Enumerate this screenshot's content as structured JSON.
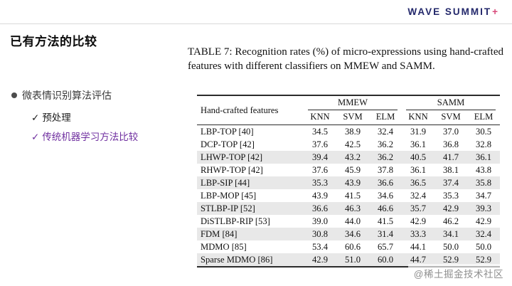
{
  "logo": {
    "brand": "WAVE SUMMIT",
    "plus": "+"
  },
  "header": {
    "title": "已有方法的比较"
  },
  "bullets": {
    "main": "微表情识别算法评估",
    "sub": [
      {
        "check": "✓",
        "label": "预处理"
      },
      {
        "check": "✓",
        "label": "传统机器学习方法比较"
      }
    ]
  },
  "table": {
    "caption": "TABLE 7: Recognition rates (%) of micro-expressions using hand-crafted features with different classifiers on MMEW and SAMM.",
    "feature_header": "Hand-crafted features",
    "groups": [
      "MMEW",
      "SAMM"
    ],
    "classifiers": [
      "KNN",
      "SVM",
      "ELM",
      "KNN",
      "SVM",
      "ELM"
    ],
    "rows": [
      {
        "feature": "LBP-TOP [40]",
        "values": [
          "34.5",
          "38.9",
          "32.4",
          "31.9",
          "37.0",
          "30.5"
        ]
      },
      {
        "feature": "DCP-TOP [42]",
        "values": [
          "37.6",
          "42.5",
          "36.2",
          "36.1",
          "36.8",
          "32.8"
        ]
      },
      {
        "feature": "LHWP-TOP [42]",
        "values": [
          "39.4",
          "43.2",
          "36.2",
          "40.5",
          "41.7",
          "36.1"
        ]
      },
      {
        "feature": "RHWP-TOP [42]",
        "values": [
          "37.6",
          "45.9",
          "37.8",
          "36.1",
          "38.1",
          "43.8"
        ]
      },
      {
        "feature": "LBP-SIP [44]",
        "values": [
          "35.3",
          "43.9",
          "36.6",
          "36.5",
          "37.4",
          "35.8"
        ]
      },
      {
        "feature": "LBP-MOP [45]",
        "values": [
          "43.9",
          "41.5",
          "34.6",
          "32.4",
          "35.3",
          "34.7"
        ]
      },
      {
        "feature": "STLBP-IP [52]",
        "values": [
          "36.6",
          "46.3",
          "46.6",
          "35.7",
          "42.9",
          "39.3"
        ]
      },
      {
        "feature": "DiSTLBP-RIP [53]",
        "values": [
          "39.0",
          "44.0",
          "41.5",
          "42.9",
          "46.2",
          "42.9"
        ]
      },
      {
        "feature": "FDM [84]",
        "values": [
          "30.8",
          "34.6",
          "31.4",
          "33.3",
          "34.1",
          "32.4"
        ]
      },
      {
        "feature": "MDMO [85]",
        "values": [
          "53.4",
          "60.6",
          "65.7",
          "44.1",
          "50.0",
          "50.0"
        ]
      },
      {
        "feature": "Sparse MDMO [86]",
        "values": [
          "42.9",
          "51.0",
          "60.0",
          "44.7",
          "52.9",
          "52.9"
        ]
      }
    ]
  },
  "watermark": "@稀土掘金技术社区"
}
